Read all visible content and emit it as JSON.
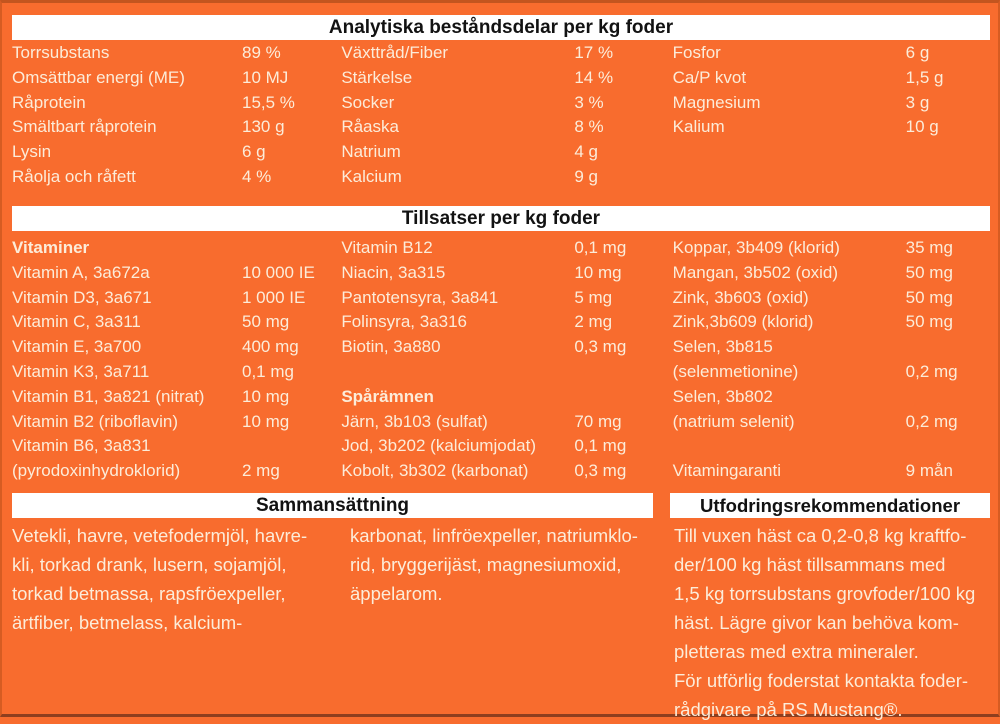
{
  "page": {
    "bg_color": "#f86c2e",
    "bar_color": "#ffffff",
    "text_color": "#fcecd9",
    "header_text_color": "#121212"
  },
  "analytical": {
    "title": "Analytiska beståndsdelar per kg foder",
    "col1": [
      {
        "label": "Torrsubstans",
        "value": "89 %"
      },
      {
        "label": "Omsättbar energi (ME)",
        "value": "10 MJ"
      },
      {
        "label": "Råprotein",
        "value": "15,5 %"
      },
      {
        "label": "Smältbart råprotein",
        "value": "130 g"
      },
      {
        "label": "Lysin",
        "value": "6 g"
      },
      {
        "label": "Råolja och råfett",
        "value": "4 %"
      }
    ],
    "col2": [
      {
        "label": "Växttråd/Fiber",
        "value": "17 %"
      },
      {
        "label": "Stärkelse",
        "value": "14 %"
      },
      {
        "label": "Socker",
        "value": "3 %"
      },
      {
        "label": "Råaska",
        "value": "8 %"
      },
      {
        "label": "Natrium",
        "value": "4 g"
      },
      {
        "label": "Kalcium",
        "value": "9 g"
      }
    ],
    "col3": [
      {
        "label": "Fosfor",
        "value": "6 g"
      },
      {
        "label": "Ca/P kvot",
        "value": "1,5 g"
      },
      {
        "label": "Magnesium",
        "value": "3 g"
      },
      {
        "label": "Kalium",
        "value": "10 g"
      }
    ]
  },
  "additives": {
    "title": "Tillsatser per kg foder",
    "col1": [
      {
        "label": "Vitaminer",
        "value": "",
        "bold": true
      },
      {
        "label": "Vitamin A, 3a672a",
        "value": "10 000 IE"
      },
      {
        "label": "Vitamin D3, 3a671",
        "value": "1 000 IE"
      },
      {
        "label": "Vitamin C, 3a311",
        "value": "50 mg"
      },
      {
        "label": "Vitamin E, 3a700",
        "value": "400 mg"
      },
      {
        "label": "Vitamin K3, 3a711",
        "value": "0,1 mg"
      },
      {
        "label": "Vitamin B1, 3a821 (nitrat)",
        "value": "10 mg"
      },
      {
        "label": "Vitamin B2 (riboflavin)",
        "value": "10 mg"
      },
      {
        "label": "Vitamin B6, 3a831",
        "value": ""
      },
      {
        "label": "(pyrodoxinhydroklorid)",
        "value": "2 mg"
      }
    ],
    "col2": [
      {
        "label": "Vitamin B12",
        "value": "0,1 mg"
      },
      {
        "label": "Niacin, 3a315",
        "value": "10 mg"
      },
      {
        "label": "Pantotensyra, 3a841",
        "value": "5 mg"
      },
      {
        "label": "Folinsyra, 3a316",
        "value": "2 mg"
      },
      {
        "label": "Biotin, 3a880",
        "value": "0,3 mg"
      },
      {
        "label": "",
        "value": ""
      },
      {
        "label": "Spårämnen",
        "value": "",
        "bold": true
      },
      {
        "label": "Järn, 3b103 (sulfat)",
        "value": "70 mg"
      },
      {
        "label": "Jod, 3b202 (kalciumjodat)",
        "value": "0,1 mg"
      },
      {
        "label": "Kobolt, 3b302 (karbonat)",
        "value": "0,3 mg"
      }
    ],
    "col3": [
      {
        "label": "Koppar, 3b409 (klorid)",
        "value": "35 mg"
      },
      {
        "label": "Mangan, 3b502 (oxid)",
        "value": "50 mg"
      },
      {
        "label": "Zink, 3b603 (oxid)",
        "value": "50 mg"
      },
      {
        "label": "Zink,3b609 (klorid)",
        "value": "50 mg"
      },
      {
        "label": "Selen, 3b815",
        "value": ""
      },
      {
        "label": "(selenmetionine)",
        "value": "0,2 mg"
      },
      {
        "label": "Selen, 3b802",
        "value": ""
      },
      {
        "label": "(natrium selenit)",
        "value": "0,2 mg"
      },
      {
        "label": "",
        "value": ""
      },
      {
        "label": "Vitamingaranti",
        "value": "9 mån"
      }
    ]
  },
  "composition": {
    "title": "Sammansättning",
    "col1_lines": [
      "Vetekli, havre, vetefodermjöl, havre-",
      "kli, torkad drank, lusern, sojamjöl,",
      "torkad betmassa, rapsfröexpeller,",
      "ärtfiber, betmelass, kalcium-"
    ],
    "col2_lines": [
      "karbonat, linfröexpeller, natriumklo-",
      "rid, bryggerijäst, magnesiumoxid,",
      "äppelarom."
    ]
  },
  "feeding": {
    "title": "Utfodringsrekommendationer",
    "lines": [
      "Till vuxen häst ca 0,2-0,8 kg kraftfo-",
      "der/100 kg häst tillsammans med",
      "1,5 kg torrsubstans grovfoder/100 kg",
      "häst. Lägre givor kan behöva kom-",
      "pletteras med extra mineraler.",
      "För utförlig foderstat kontakta foder-",
      "rådgivare på RS Mustang®."
    ]
  }
}
